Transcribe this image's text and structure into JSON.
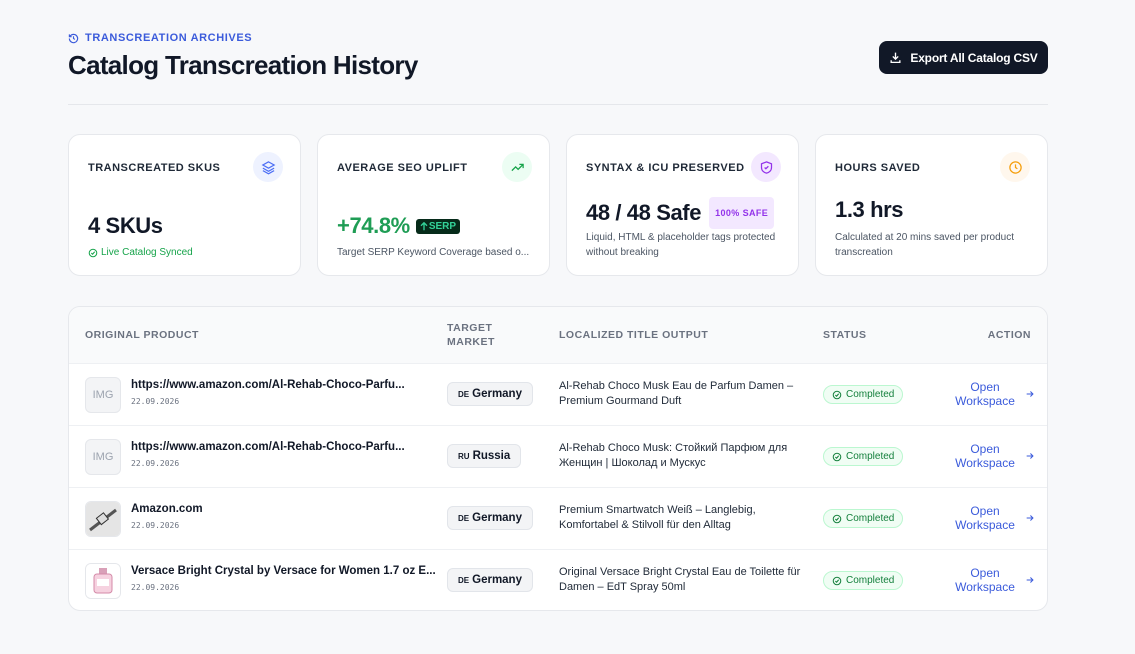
{
  "header": {
    "eyebrow": "TRANSCREATION ARCHIVES",
    "title": "Catalog Transcreation History",
    "export_button": "Export All Catalog CSV"
  },
  "stats": [
    {
      "label": "TRANSCREATED SKUS",
      "value": "4 SKUs",
      "note": "Live Catalog Synced"
    },
    {
      "label": "AVERAGE SEO UPLIFT",
      "value": "+74.8%",
      "badge": "SERP",
      "note": "Target SERP Keyword Coverage based o..."
    },
    {
      "label": "SYNTAX & ICU PRESERVED",
      "value": "48 / 48 Safe",
      "badge": "100% SAFE",
      "note": "Liquid, HTML & placeholder tags protected without breaking"
    },
    {
      "label": "HOURS SAVED",
      "value": "1.3 hrs",
      "note": "Calculated at 20 mins saved per product transcreation"
    }
  ],
  "table": {
    "headers": [
      "ORIGINAL PRODUCT",
      "TARGET MARKET",
      "LOCALIZED TITLE OUTPUT",
      "STATUS",
      "ACTION"
    ],
    "rows": [
      {
        "thumb": "IMG",
        "product": "https://www.amazon.com/Al-Rehab-Choco-Parfu...",
        "date": "22.09.2026",
        "market_code": "DE",
        "market": "Germany",
        "localized": "Al-Rehab Choco Musk Eau de Parfum Damen – Premium Gourmand Duft",
        "status": "Completed",
        "action": "Open Workspace"
      },
      {
        "thumb": "IMG",
        "product": "https://www.amazon.com/Al-Rehab-Choco-Parfu...",
        "date": "22.09.2026",
        "market_code": "RU",
        "market": "Russia",
        "localized": "Al-Rehab Choco Musk: Стойкий Парфюм для Женщин | Шоколад и Мускус",
        "status": "Completed",
        "action": "Open Workspace"
      },
      {
        "product": "Amazon.com",
        "date": "22.09.2026",
        "market_code": "DE",
        "market": "Germany",
        "localized": "Premium Smartwatch Weiß – Langlebig, Komfortabel & Stilvoll für den Alltag",
        "status": "Completed",
        "action": "Open Workspace"
      },
      {
        "product": "Versace Bright Crystal by Versace for Women 1.7 oz E...",
        "date": "22.09.2026",
        "market_code": "DE",
        "market": "Germany",
        "localized": "Original Versace Bright Crystal Eau de Toilette für Damen – EdT Spray 50ml",
        "status": "Completed",
        "action": "Open Workspace"
      }
    ]
  }
}
